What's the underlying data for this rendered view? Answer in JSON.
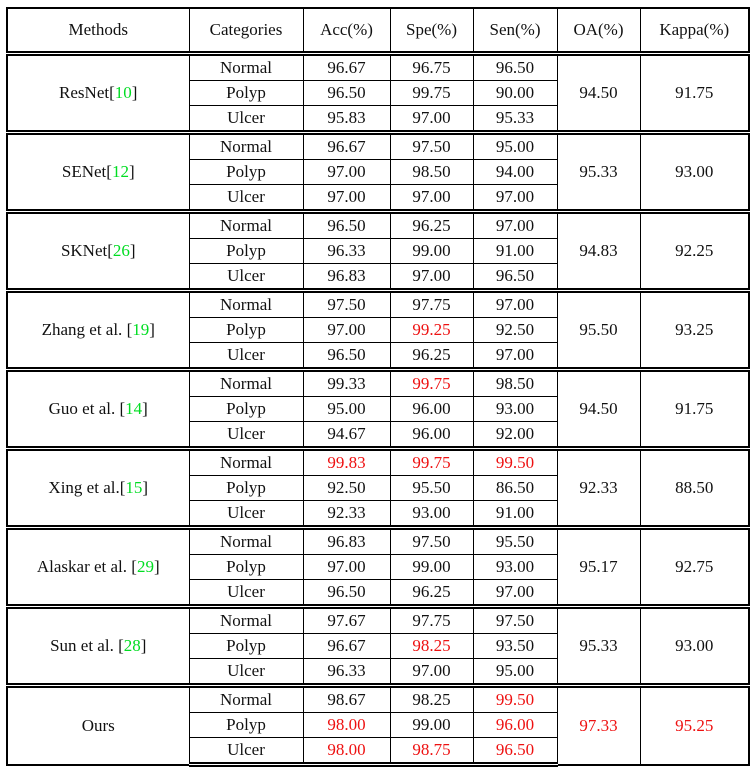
{
  "colors": {
    "highlight_red": "#ee1111",
    "reference_green": "#00dd22",
    "text": "#111111",
    "border": "#000000",
    "background": "#ffffff"
  },
  "table": {
    "headers": [
      "Methods",
      "Categories",
      "Acc(%)",
      "Spe(%)",
      "Sen(%)",
      "OA(%)",
      "Kappa(%)"
    ],
    "groups": [
      {
        "method": "ResNet",
        "reference": "10",
        "rows": [
          {
            "category": "Normal",
            "values": [
              "96.67",
              "96.75",
              "96.50"
            ],
            "red": [
              false,
              false,
              false
            ]
          },
          {
            "category": "Polyp",
            "values": [
              "96.50",
              "99.75",
              "90.00"
            ],
            "red": [
              false,
              false,
              false
            ]
          },
          {
            "category": "Ulcer",
            "values": [
              "95.83",
              "97.00",
              "95.33"
            ],
            "red": [
              false,
              false,
              false
            ]
          }
        ],
        "oa": "94.50",
        "oa_red": false,
        "kappa": "91.75",
        "kappa_red": false
      },
      {
        "method": "SENet",
        "reference": "12",
        "rows": [
          {
            "category": "Normal",
            "values": [
              "96.67",
              "97.50",
              "95.00"
            ],
            "red": [
              false,
              false,
              false
            ]
          },
          {
            "category": "Polyp",
            "values": [
              "97.00",
              "98.50",
              "94.00"
            ],
            "red": [
              false,
              false,
              false
            ]
          },
          {
            "category": "Ulcer",
            "values": [
              "97.00",
              "97.00",
              "97.00"
            ],
            "red": [
              false,
              false,
              false
            ]
          }
        ],
        "oa": "95.33",
        "oa_red": false,
        "kappa": "93.00",
        "kappa_red": false
      },
      {
        "method": "SKNet",
        "reference": "26",
        "rows": [
          {
            "category": "Normal",
            "values": [
              "96.50",
              "96.25",
              "97.00"
            ],
            "red": [
              false,
              false,
              false
            ]
          },
          {
            "category": "Polyp",
            "values": [
              "96.33",
              "99.00",
              "91.00"
            ],
            "red": [
              false,
              false,
              false
            ]
          },
          {
            "category": "Ulcer",
            "values": [
              "96.83",
              "97.00",
              "96.50"
            ],
            "red": [
              false,
              false,
              false
            ]
          }
        ],
        "oa": "94.83",
        "oa_red": false,
        "kappa": "92.25",
        "kappa_red": false
      },
      {
        "method": "Zhang et al. ",
        "reference": "19",
        "rows": [
          {
            "category": "Normal",
            "values": [
              "97.50",
              "97.75",
              "97.00"
            ],
            "red": [
              false,
              false,
              false
            ]
          },
          {
            "category": "Polyp",
            "values": [
              "97.00",
              "99.25",
              "92.50"
            ],
            "red": [
              false,
              true,
              false
            ]
          },
          {
            "category": "Ulcer",
            "values": [
              "96.50",
              "96.25",
              "97.00"
            ],
            "red": [
              false,
              false,
              false
            ]
          }
        ],
        "oa": "95.50",
        "oa_red": false,
        "kappa": "93.25",
        "kappa_red": false
      },
      {
        "method": "Guo et al. ",
        "reference": "14",
        "rows": [
          {
            "category": "Normal",
            "values": [
              "99.33",
              "99.75",
              "98.50"
            ],
            "red": [
              false,
              true,
              false
            ]
          },
          {
            "category": "Polyp",
            "values": [
              "95.00",
              "96.00",
              "93.00"
            ],
            "red": [
              false,
              false,
              false
            ]
          },
          {
            "category": "Ulcer",
            "values": [
              "94.67",
              "96.00",
              "92.00"
            ],
            "red": [
              false,
              false,
              false
            ]
          }
        ],
        "oa": "94.50",
        "oa_red": false,
        "kappa": "91.75",
        "kappa_red": false
      },
      {
        "method": "Xing et al.",
        "reference": "15",
        "rows": [
          {
            "category": "Normal",
            "values": [
              "99.83",
              "99.75",
              "99.50"
            ],
            "red": [
              true,
              true,
              true
            ]
          },
          {
            "category": "Polyp",
            "values": [
              "92.50",
              "95.50",
              "86.50"
            ],
            "red": [
              false,
              false,
              false
            ]
          },
          {
            "category": "Ulcer",
            "values": [
              "92.33",
              "93.00",
              "91.00"
            ],
            "red": [
              false,
              false,
              false
            ]
          }
        ],
        "oa": "92.33",
        "oa_red": false,
        "kappa": "88.50",
        "kappa_red": false
      },
      {
        "method": "Alaskar et al. ",
        "reference": "29",
        "rows": [
          {
            "category": "Normal",
            "values": [
              "96.83",
              "97.50",
              "95.50"
            ],
            "red": [
              false,
              false,
              false
            ]
          },
          {
            "category": "Polyp",
            "values": [
              "97.00",
              "99.00",
              "93.00"
            ],
            "red": [
              false,
              false,
              false
            ]
          },
          {
            "category": "Ulcer",
            "values": [
              "96.50",
              "96.25",
              "97.00"
            ],
            "red": [
              false,
              false,
              false
            ]
          }
        ],
        "oa": "95.17",
        "oa_red": false,
        "kappa": "92.75",
        "kappa_red": false
      },
      {
        "method": "Sun et al. ",
        "reference": "28",
        "rows": [
          {
            "category": "Normal",
            "values": [
              "97.67",
              "97.75",
              "97.50"
            ],
            "red": [
              false,
              false,
              false
            ]
          },
          {
            "category": "Polyp",
            "values": [
              "96.67",
              "98.25",
              "93.50"
            ],
            "red": [
              false,
              true,
              false
            ]
          },
          {
            "category": "Ulcer",
            "values": [
              "96.33",
              "97.00",
              "95.00"
            ],
            "red": [
              false,
              false,
              false
            ]
          }
        ],
        "oa": "95.33",
        "oa_red": false,
        "kappa": "93.00",
        "kappa_red": false
      },
      {
        "method": "Ours",
        "reference": null,
        "rows": [
          {
            "category": "Normal",
            "values": [
              "98.67",
              "98.25",
              "99.50"
            ],
            "red": [
              false,
              false,
              true
            ]
          },
          {
            "category": "Polyp",
            "values": [
              "98.00",
              "99.00",
              "96.00"
            ],
            "red": [
              true,
              false,
              true
            ]
          },
          {
            "category": "Ulcer",
            "values": [
              "98.00",
              "98.75",
              "96.50"
            ],
            "red": [
              true,
              true,
              true
            ]
          }
        ],
        "oa": "97.33",
        "oa_red": true,
        "kappa": "95.25",
        "kappa_red": true
      }
    ]
  }
}
